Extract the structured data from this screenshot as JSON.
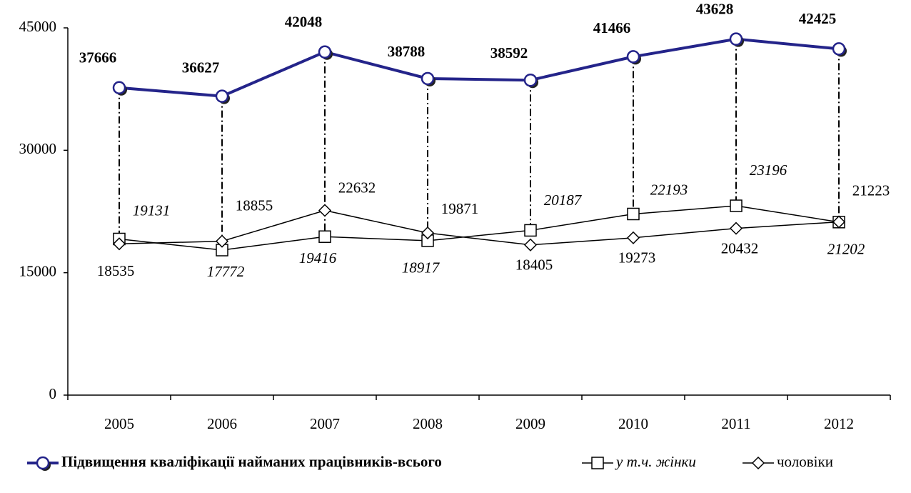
{
  "chart_data": {
    "type": "line",
    "categories": [
      "2005",
      "2006",
      "2007",
      "2008",
      "2009",
      "2010",
      "2011",
      "2012"
    ],
    "series": [
      {
        "name": "Підвищення кваліфікації найманих працівників-всього",
        "color": "#24248a",
        "values": [
          37666,
          36627,
          42048,
          38788,
          38592,
          41466,
          43628,
          42425
        ]
      },
      {
        "name": "у т.ч. жінки",
        "color": "#000000",
        "values": [
          19131,
          17772,
          19416,
          18917,
          20187,
          22193,
          23196,
          21202
        ]
      },
      {
        "name": "чоловіки",
        "color": "#000000",
        "values": [
          18535,
          18855,
          22632,
          19871,
          18405,
          19273,
          20432,
          21223
        ]
      }
    ],
    "ylim": [
      0,
      45000
    ],
    "yticks": [
      0,
      15000,
      30000,
      45000
    ],
    "grid": false
  }
}
